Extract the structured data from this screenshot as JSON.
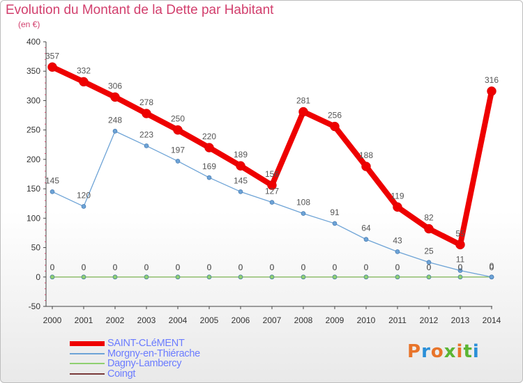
{
  "header": {
    "title": "Evolution du Montant de la Dette par Habitant",
    "subtitle": "(en €)"
  },
  "colors": {
    "title": "#d23f6d",
    "legend_text": "#6b7cff",
    "axis_text": "#333333",
    "data_label": "#555555"
  },
  "brand": {
    "text": "Proxiti",
    "letter_colors": [
      "#e8742a",
      "#2a8fd8",
      "#e8742a",
      "#5bb534",
      "#e8742a",
      "#5bb534",
      "#2a8fd8"
    ]
  },
  "chart_data": {
    "type": "line",
    "title": "Evolution du Montant de la Dette par Habitant",
    "subtitle": "(en €)",
    "xlabel": "",
    "ylabel": "",
    "x": [
      "2000",
      "2001",
      "2002",
      "2003",
      "2004",
      "2005",
      "2006",
      "2007",
      "2008",
      "2009",
      "2010",
      "2011",
      "2012",
      "2013",
      "2014"
    ],
    "ylim": [
      -50,
      400
    ],
    "yticks": [
      -50,
      0,
      50,
      100,
      150,
      200,
      250,
      300,
      350,
      400
    ],
    "grid": false,
    "legend_position": "bottom",
    "series": [
      {
        "name": "SAINT-CLéMENT",
        "color": "#ee0000",
        "style": "thick",
        "values": [
          357,
          332,
          306,
          278,
          250,
          220,
          189,
          156,
          281,
          256,
          188,
          119,
          82,
          55,
          316
        ],
        "labels": [
          "357",
          "332",
          "306",
          "278",
          "250",
          "220",
          "189",
          "156",
          "281",
          "256",
          "188",
          "119",
          "82",
          "55",
          "316"
        ]
      },
      {
        "name": "Morgny-en-Thiérache",
        "color": "#6da3d6",
        "style": "thin",
        "values": [
          145,
          120,
          248,
          223,
          197,
          169,
          145,
          127,
          108,
          91,
          64,
          43,
          25,
          11,
          0
        ],
        "labels": [
          "145",
          "120",
          "248",
          "223",
          "197",
          "169",
          "145",
          "127",
          "108",
          "91",
          "64",
          "43",
          "25",
          "11",
          "0"
        ]
      },
      {
        "name": "Dagny-Lambercy",
        "color": "#8fd070",
        "style": "thin",
        "values": [
          0,
          0,
          0,
          0,
          0,
          0,
          0,
          0,
          0,
          0,
          0,
          0,
          0,
          0,
          0
        ],
        "labels": [
          "0",
          "0",
          "0",
          "0",
          "0",
          "0",
          "0",
          "0",
          "0",
          "0",
          "0",
          "0",
          "0",
          "0",
          "0"
        ]
      },
      {
        "name": "Coingt",
        "color": "#7a3a3a",
        "style": "thin",
        "values": [
          0,
          0,
          0,
          0,
          0,
          0,
          0,
          0,
          0,
          0,
          0,
          0,
          0,
          0,
          0
        ],
        "labels": [
          "0",
          "0",
          "0",
          "0",
          "0",
          "0",
          "0",
          "0",
          "0",
          "0",
          "0",
          "0",
          "0",
          "0",
          "0"
        ]
      }
    ]
  }
}
